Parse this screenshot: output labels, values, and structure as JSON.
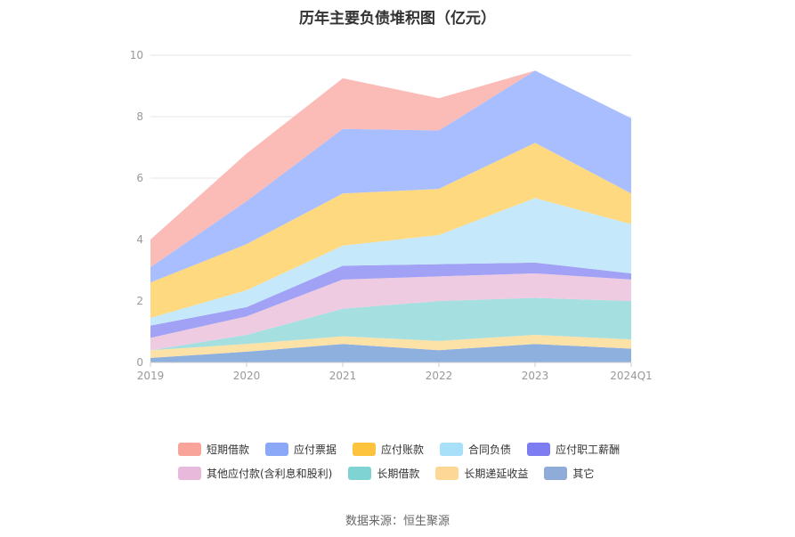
{
  "chart_data": {
    "type": "area",
    "title": "历年主要负债堆积图（亿元）",
    "categories": [
      "2019",
      "2020",
      "2021",
      "2022",
      "2023",
      "2024Q1"
    ],
    "ylim": [
      0,
      10
    ],
    "yticks": [
      0,
      2,
      4,
      6,
      8,
      10
    ],
    "grid": true,
    "legend_position": "bottom",
    "stacked": true,
    "series": [
      {
        "name": "其它",
        "color": "#8eb0de",
        "values": [
          0.15,
          0.35,
          0.6,
          0.4,
          0.6,
          0.45
        ]
      },
      {
        "name": "长期递延收益",
        "color": "#fde2a8",
        "values": [
          0.25,
          0.25,
          0.25,
          0.3,
          0.3,
          0.3
        ]
      },
      {
        "name": "长期借款",
        "color": "#a6dfdf",
        "values": [
          0.0,
          0.3,
          0.9,
          1.3,
          1.2,
          1.25
        ]
      },
      {
        "name": "其他应付款(含利息和股利)",
        "color": "#efcbe2",
        "values": [
          0.4,
          0.6,
          0.95,
          0.8,
          0.8,
          0.7
        ]
      },
      {
        "name": "应付职工薪酬",
        "color": "#a1a1f5",
        "values": [
          0.4,
          0.3,
          0.45,
          0.4,
          0.35,
          0.2
        ]
      },
      {
        "name": "合同负债",
        "color": "#c5e9fb",
        "values": [
          0.25,
          0.55,
          0.65,
          0.95,
          2.1,
          1.6
        ]
      },
      {
        "name": "应付账款",
        "color": "#ffd97f",
        "values": [
          1.15,
          1.5,
          1.7,
          1.5,
          1.8,
          1.0
        ]
      },
      {
        "name": "应付票据",
        "color": "#a8beff",
        "values": [
          0.5,
          1.4,
          2.1,
          1.9,
          2.35,
          2.45
        ]
      },
      {
        "name": "短期借款",
        "color": "#fbbcb8",
        "values": [
          0.9,
          1.55,
          1.65,
          1.05,
          0.0,
          0.0
        ]
      }
    ],
    "legend_order": [
      "短期借款",
      "应付票据",
      "应付账款",
      "合同负债",
      "应付职工薪酬",
      "其他应付款(含利息和股利)",
      "长期借款",
      "长期递延收益",
      "其它"
    ],
    "legend_colors": {
      "短期借款": "#f9a49b",
      "应付票据": "#8aa7f8",
      "应付账款": "#fdc33f",
      "合同负债": "#a9e0f9",
      "应付职工薪酬": "#7d7cf0",
      "其他应付款(含利息和股利)": "#e9b9db",
      "长期借款": "#7fd3d3",
      "长期递延收益": "#fdd796",
      "其它": "#8fabd8"
    }
  },
  "source_note": "数据来源：恒生聚源"
}
